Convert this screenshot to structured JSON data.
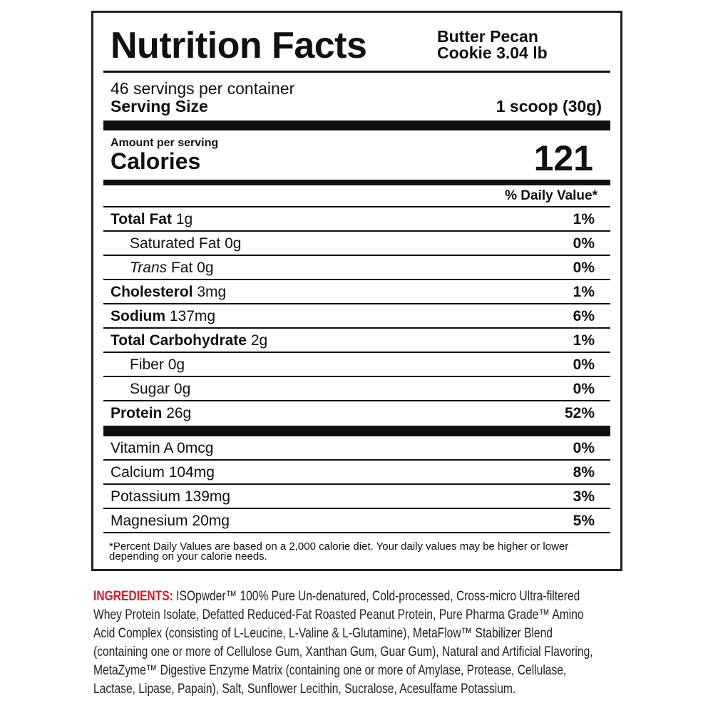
{
  "title": "Nutrition Facts",
  "product_line1": "Butter Pecan",
  "product_line2": "Cookie 3.04 lb",
  "servings_per_container": "46 servings per container",
  "serving_size_label": "Serving Size",
  "serving_size_value": "1 scoop (30g)",
  "amount_per_serving": "Amount per serving",
  "calories_label": "Calories",
  "calories_value": "121",
  "daily_value_header": "% Daily Value*",
  "nutrients": [
    {
      "name": "Total Fat",
      "amount": "1g",
      "dv": "1%"
    },
    {
      "name": "Saturated Fat",
      "amount": "0g",
      "dv": "0%"
    },
    {
      "prefix": "Trans",
      "name": "Fat",
      "amount": "0g",
      "dv": "0%"
    },
    {
      "name": "Cholesterol",
      "amount": "3mg",
      "dv": "1%"
    },
    {
      "name": "Sodium",
      "amount": "137mg",
      "dv": "6%"
    },
    {
      "name": "Total Carbohydrate",
      "amount": "2g",
      "dv": "1%"
    },
    {
      "name": "Fiber",
      "amount": "0g",
      "dv": "0%"
    },
    {
      "name": "Sugar",
      "amount": "0g",
      "dv": "0%"
    },
    {
      "name": "Protein",
      "amount": "26g",
      "dv": "52%"
    }
  ],
  "micronutrients": [
    {
      "name": "Vitamin A",
      "amount": "0mcg",
      "dv": "0%"
    },
    {
      "name": "Calcium",
      "amount": "104mg",
      "dv": "8%"
    },
    {
      "name": "Potassium",
      "amount": "139mg",
      "dv": "3%"
    },
    {
      "name": "Magnesium",
      "amount": "20mg",
      "dv": "5%"
    }
  ],
  "footnote": "*Percent Daily Values are based on a 2,000 calorie diet. Your daily values may be higher or lower depending on your calorie needs.",
  "ingredients_label": "INGREDIENTS:",
  "ingredients_text": "ISOpwder™ 100% Pure Un-denatured, Cold-processed, Cross-micro Ultra-filtered Whey Protein Isolate, Defatted Reduced-Fat Roasted Peanut Protein, Pure Pharma Grade™ Amino Acid Complex (consisting of L-Leucine, L-Valine & L-Glutamine), MetaFlow™ Stabilizer Blend (containing one or more of Cellulose Gum, Xanthan Gum, Guar Gum), Natural and Artificial Flavoring, MetaZyme™ Digestive Enzyme Matrix (containing one or more of Amylase, Protease, Cellulase, Lactase, Lipase, Papain), Salt, Sunflower Lecithin, Sucralose, Acesulfame Potassium.",
  "colors": {
    "ingredients_label": "#d0202e",
    "rule": "#111111"
  }
}
